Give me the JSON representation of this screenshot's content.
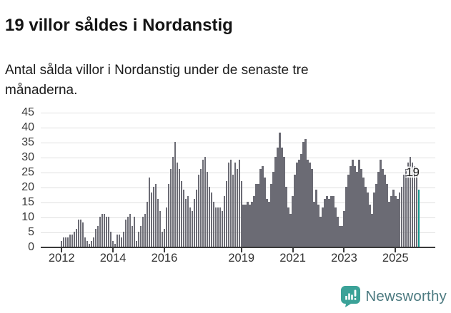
{
  "header": {
    "title": "19 villor såldes i Nordanstig",
    "subtitle": "Antal sålda villor i Nordanstig under de senaste tre månaderna."
  },
  "annotation": {
    "last_value_label": "19"
  },
  "footer": {
    "brand": "Newsworthy",
    "logo_icon": "newsworthy-chart-bubble-icon"
  },
  "colors": {
    "bar": "#6b6b74",
    "highlight": "#14978e",
    "gridline": "#e0e0e0",
    "axis": "#3a3a3a",
    "logo_icon": "#3ba298",
    "logo_text": "#4d7b81"
  },
  "chart_data": {
    "type": "bar",
    "title": "19 villor såldes i Nordanstig",
    "subtitle": "Antal sålda villor i Nordanstig under de senaste tre månaderna.",
    "x_unit": "month",
    "x_start": "2012-01",
    "x_end": "2025-12",
    "ylim": [
      0,
      45
    ],
    "yticks": [
      0,
      5,
      10,
      15,
      20,
      25,
      30,
      35,
      40,
      45
    ],
    "grid": "horizontal",
    "legend": "none",
    "highlight_last_bar": true,
    "last_value": 19,
    "xticks": [
      {
        "label": "2012",
        "month_index": 0
      },
      {
        "label": "2014",
        "month_index": 24
      },
      {
        "label": "2016",
        "month_index": 48
      },
      {
        "label": "2019",
        "month_index": 84
      },
      {
        "label": "2021",
        "month_index": 108
      },
      {
        "label": "2023",
        "month_index": 132
      },
      {
        "label": "2025",
        "month_index": 156
      }
    ],
    "values": [
      2,
      3,
      3,
      3,
      4,
      4,
      5,
      6,
      9,
      9,
      8,
      3,
      2,
      1,
      2,
      3,
      6,
      7,
      10,
      11,
      11,
      10,
      10,
      5,
      2,
      1,
      4,
      4,
      3,
      5,
      9,
      10,
      11,
      7,
      10,
      2,
      5,
      7,
      10,
      11,
      15,
      23,
      18,
      20,
      21,
      16,
      12,
      5,
      6,
      13,
      21,
      26,
      30,
      35,
      28,
      26,
      22,
      19,
      16,
      17,
      13,
      12,
      16,
      19,
      24,
      26,
      29,
      30,
      25,
      20,
      18,
      15,
      13,
      13,
      13,
      12,
      17,
      22,
      28,
      29,
      24,
      28,
      26,
      29,
      22,
      14,
      14,
      15,
      14,
      15,
      17,
      21,
      21,
      26,
      27,
      23,
      16,
      15,
      21,
      25,
      30,
      33,
      38,
      33,
      30,
      20,
      13,
      11,
      17,
      24,
      28,
      29,
      31,
      35,
      36,
      29,
      28,
      26,
      15,
      19,
      14,
      10,
      13,
      16,
      17,
      16,
      17,
      17,
      13,
      10,
      7,
      7,
      12,
      20,
      24,
      27,
      29,
      27,
      25,
      29,
      26,
      23,
      20,
      18,
      14,
      11,
      18,
      21,
      25,
      29,
      26,
      24,
      21,
      15,
      17,
      19,
      17,
      16,
      18,
      20,
      24,
      26,
      28,
      30,
      28,
      27,
      26,
      19
    ]
  }
}
